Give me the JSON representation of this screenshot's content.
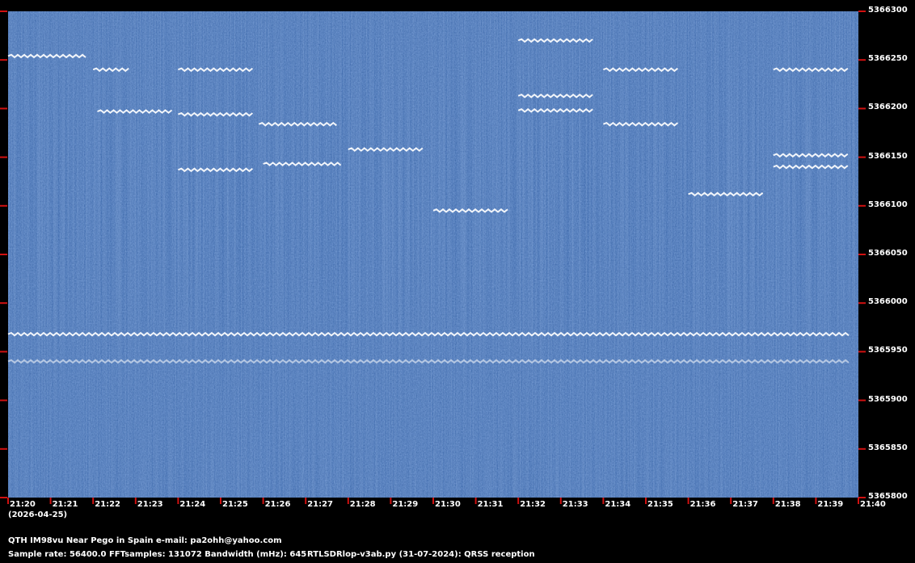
{
  "chart_data": {
    "type": "heatmap",
    "title": "",
    "xlabel": "",
    "ylabel": "",
    "x_ticks": [
      "21:20",
      "21:21",
      "21:22",
      "21:23",
      "21:24",
      "21:25",
      "21:26",
      "21:27",
      "21:28",
      "21:29",
      "21:30",
      "21:31",
      "21:32",
      "21:33",
      "21:34",
      "21:35",
      "21:36",
      "21:37",
      "21:38",
      "21:39",
      "21:40"
    ],
    "y_ticks": [
      5366300,
      5366250,
      5366200,
      5366150,
      5366100,
      5366050,
      5366000,
      5365950,
      5365900,
      5365850,
      5365800
    ],
    "xlim_minutes": [
      0,
      20
    ],
    "ylim_hz": [
      5365800,
      5366300
    ],
    "colors": {
      "background": "#2d5a9e",
      "signal": "#ffffff",
      "frame": "#000000",
      "tick": "#d01010"
    },
    "signals": [
      {
        "t0": 0.0,
        "t1": 1.9,
        "f": 5366254
      },
      {
        "t0": 2.0,
        "t1": 2.9,
        "f": 5366240
      },
      {
        "t0": 2.1,
        "t1": 3.9,
        "f": 5366197
      },
      {
        "t0": 4.0,
        "t1": 5.8,
        "f": 5366240
      },
      {
        "t0": 4.0,
        "t1": 5.8,
        "f": 5366194
      },
      {
        "t0": 4.0,
        "t1": 5.8,
        "f": 5366137
      },
      {
        "t0": 5.9,
        "t1": 7.8,
        "f": 5366184
      },
      {
        "t0": 6.0,
        "t1": 7.9,
        "f": 5366143
      },
      {
        "t0": 8.0,
        "t1": 9.8,
        "f": 5366158
      },
      {
        "t0": 10.0,
        "t1": 11.8,
        "f": 5366095
      },
      {
        "t0": 12.0,
        "t1": 13.8,
        "f": 5366270
      },
      {
        "t0": 12.0,
        "t1": 13.8,
        "f": 5366213
      },
      {
        "t0": 12.0,
        "t1": 13.8,
        "f": 5366198
      },
      {
        "t0": 14.0,
        "t1": 15.8,
        "f": 5366240
      },
      {
        "t0": 14.0,
        "t1": 15.8,
        "f": 5366184
      },
      {
        "t0": 16.0,
        "t1": 17.8,
        "f": 5366112
      },
      {
        "t0": 18.0,
        "t1": 19.8,
        "f": 5366240
      },
      {
        "t0": 18.0,
        "t1": 19.8,
        "f": 5366152
      },
      {
        "t0": 18.0,
        "t1": 19.8,
        "f": 5366140
      },
      {
        "t0": 0.0,
        "t1": 19.8,
        "f": 5365968
      },
      {
        "t0": 0.0,
        "t1": 19.8,
        "f": 5365940
      }
    ]
  },
  "header": {
    "date": "(2026-04-25)"
  },
  "footer": {
    "qth": "QTH IM98vu Near Pego in Spain   e-mail: pa2ohh@yahoo.com",
    "params": "Sample rate: 56400.0    FFTsamples: 131072    Bandwidth (mHz): 645",
    "software": "RTLSDRlop-v3ab.py (31-07-2024): QRSS reception"
  }
}
